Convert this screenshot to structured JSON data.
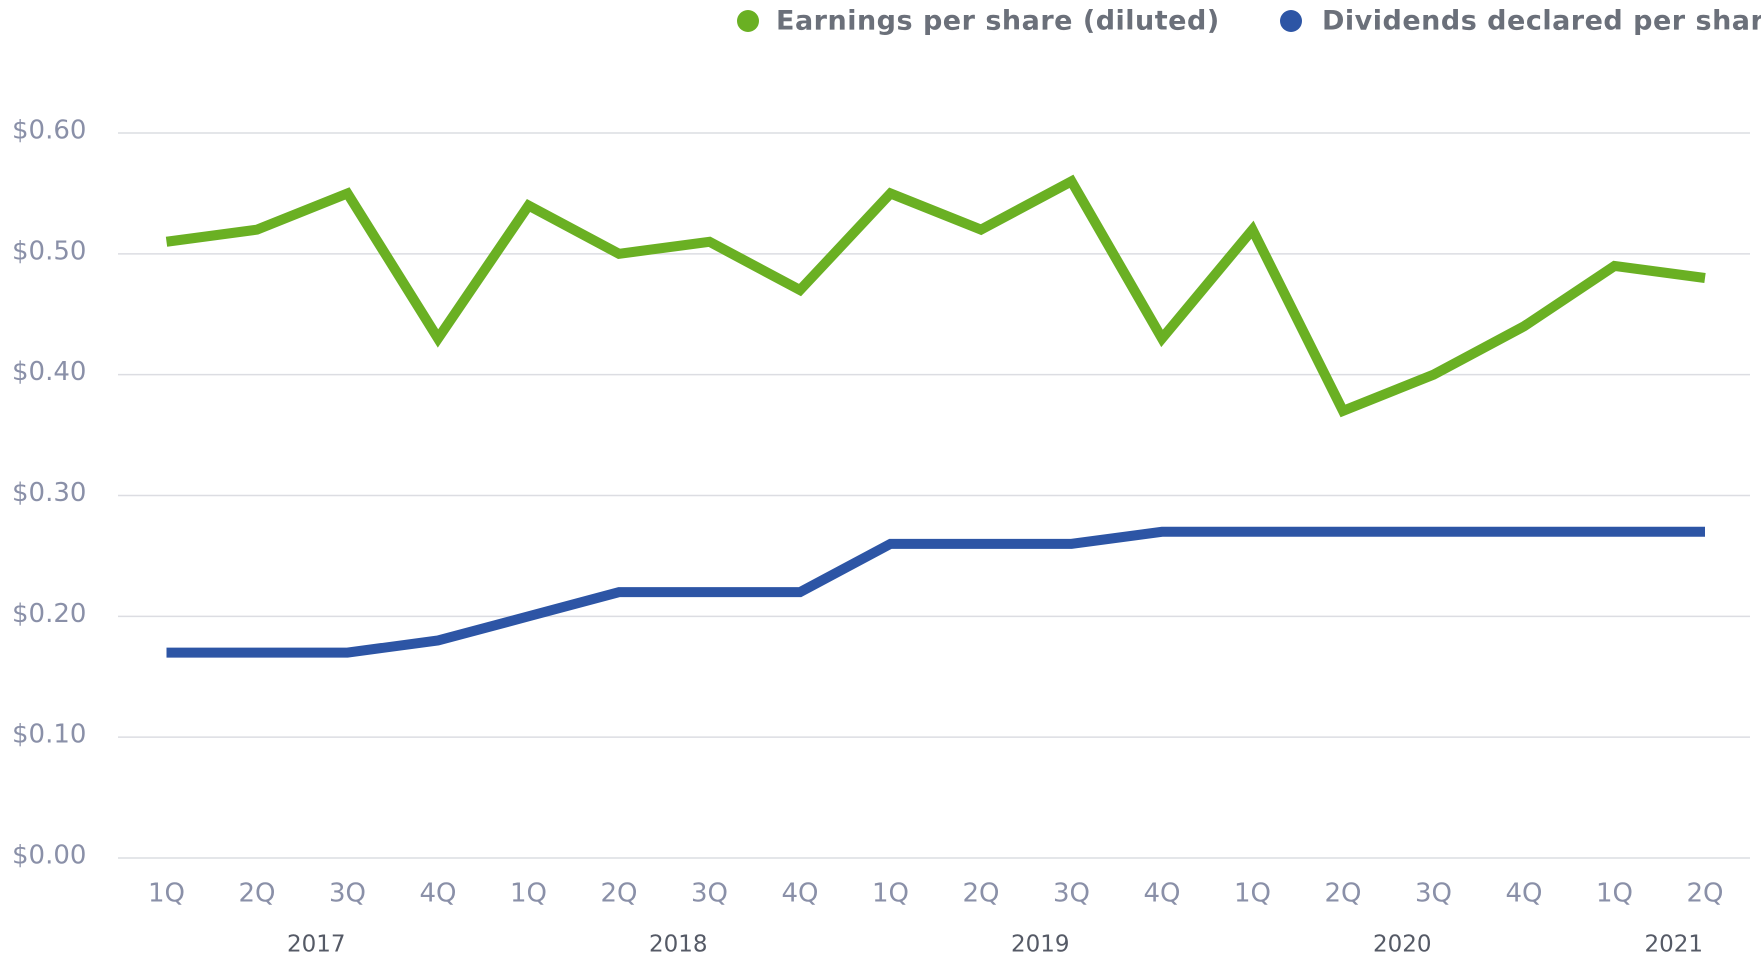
{
  "chart_data": {
    "type": "line",
    "categories": [
      {
        "quarter": "1Q",
        "year": "2017"
      },
      {
        "quarter": "2Q",
        "year": "2017"
      },
      {
        "quarter": "3Q",
        "year": "2017"
      },
      {
        "quarter": "4Q",
        "year": "2017"
      },
      {
        "quarter": "1Q",
        "year": "2018"
      },
      {
        "quarter": "2Q",
        "year": "2018"
      },
      {
        "quarter": "3Q",
        "year": "2018"
      },
      {
        "quarter": "4Q",
        "year": "2018"
      },
      {
        "quarter": "1Q",
        "year": "2019"
      },
      {
        "quarter": "2Q",
        "year": "2019"
      },
      {
        "quarter": "3Q",
        "year": "2019"
      },
      {
        "quarter": "4Q",
        "year": "2019"
      },
      {
        "quarter": "1Q",
        "year": "2020"
      },
      {
        "quarter": "2Q",
        "year": "2020"
      },
      {
        "quarter": "3Q",
        "year": "2020"
      },
      {
        "quarter": "4Q",
        "year": "2020"
      },
      {
        "quarter": "1Q",
        "year": "2021"
      },
      {
        "quarter": "2Q",
        "year": "2021"
      }
    ],
    "series": [
      {
        "name": "Earnings per share (diluted)",
        "color": "#6ab023",
        "values": [
          0.51,
          0.52,
          0.55,
          0.43,
          0.54,
          0.5,
          0.51,
          0.47,
          0.55,
          0.52,
          0.56,
          0.43,
          0.52,
          0.37,
          0.4,
          0.44,
          0.49,
          0.48
        ]
      },
      {
        "name": "Dividends declared per share",
        "color": "#2d55a5",
        "values": [
          0.17,
          0.17,
          0.17,
          0.18,
          0.2,
          0.22,
          0.22,
          0.22,
          0.26,
          0.26,
          0.26,
          0.27,
          0.27,
          0.27,
          0.27,
          0.27,
          0.27,
          0.27
        ]
      }
    ],
    "ylim": [
      0,
      0.6
    ],
    "yticks": [
      {
        "value": 0,
        "label": "$0.00"
      },
      {
        "value": 0.1,
        "label": "$0.10"
      },
      {
        "value": 0.2,
        "label": "$0.20"
      },
      {
        "value": 0.3,
        "label": "$0.30"
      },
      {
        "value": 0.4,
        "label": "$0.40"
      },
      {
        "value": 0.5,
        "label": "$0.50"
      },
      {
        "value": 0.6,
        "label": "$0.60"
      }
    ],
    "grid": true
  }
}
